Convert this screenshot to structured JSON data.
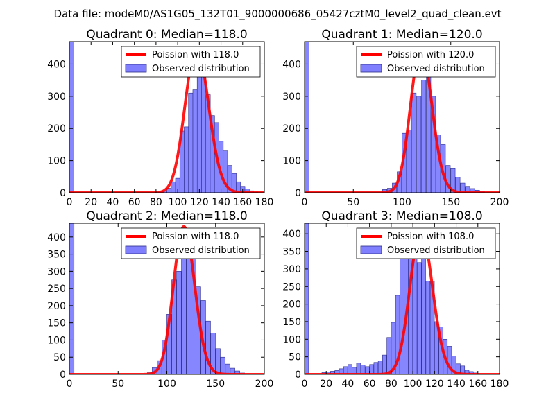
{
  "figure_title": "Data file: modeM0/AS1G05_132T01_9000000686_05427cztM0_level2_quad_clean.evt",
  "colors": {
    "bar_fill": "#8080ff",
    "bar_edge": "#2a2a88",
    "curve": "#ff0000",
    "axes": "#000000",
    "background": "#ffffff"
  },
  "chart_data": [
    {
      "type": "bar",
      "title": "Quadrant 0: Median=118.0",
      "legend_position": "top-right",
      "legend": [
        "Poission with 118.0",
        "Observed distribution"
      ],
      "median": 118.0,
      "xlim": [
        0,
        180
      ],
      "ylim": [
        0,
        470
      ],
      "xticks": [
        0,
        20,
        40,
        60,
        80,
        100,
        120,
        140,
        160,
        180
      ],
      "xtick_labels": [
        "0",
        "20",
        "40",
        "60",
        "80",
        "100",
        "120",
        "140",
        "160",
        "180"
      ],
      "yticks": [
        0,
        100,
        200,
        300,
        400
      ],
      "ytick_labels": [
        "0",
        "100",
        "200",
        "300",
        "400"
      ],
      "bin_width": 4.1,
      "bins": [
        [
          0,
          470
        ],
        [
          82,
          3
        ],
        [
          86,
          6
        ],
        [
          90,
          14
        ],
        [
          94,
          34
        ],
        [
          98,
          45
        ],
        [
          102,
          192
        ],
        [
          106,
          205
        ],
        [
          110,
          310
        ],
        [
          114,
          320
        ],
        [
          118,
          380
        ],
        [
          122,
          370
        ],
        [
          126,
          305
        ],
        [
          130,
          240
        ],
        [
          134,
          218
        ],
        [
          138,
          160
        ],
        [
          142,
          130
        ],
        [
          146,
          85
        ],
        [
          150,
          60
        ],
        [
          154,
          34
        ],
        [
          158,
          20
        ],
        [
          162,
          12
        ],
        [
          166,
          6
        ],
        [
          170,
          2
        ]
      ],
      "curve_scale": 450
    },
    {
      "type": "bar",
      "title": "Quadrant 1: Median=120.0",
      "legend_position": "top-right",
      "legend": [
        "Poission with 120.0",
        "Observed distribution"
      ],
      "median": 120.0,
      "xlim": [
        0,
        200
      ],
      "ylim": [
        0,
        470
      ],
      "xticks": [
        0,
        50,
        100,
        150,
        200
      ],
      "xtick_labels": [
        "0",
        "50",
        "100",
        "150",
        "200"
      ],
      "yticks": [
        0,
        100,
        200,
        300,
        400
      ],
      "ytick_labels": [
        "0",
        "100",
        "200",
        "300",
        "400"
      ],
      "bin_width": 4.5,
      "bins": [
        [
          0,
          470
        ],
        [
          80,
          10
        ],
        [
          85,
          14
        ],
        [
          90,
          30
        ],
        [
          95,
          65
        ],
        [
          100,
          185
        ],
        [
          105,
          195
        ],
        [
          110,
          310
        ],
        [
          115,
          300
        ],
        [
          120,
          350
        ],
        [
          125,
          410
        ],
        [
          130,
          300
        ],
        [
          135,
          180
        ],
        [
          140,
          150
        ],
        [
          145,
          85
        ],
        [
          150,
          75
        ],
        [
          155,
          48
        ],
        [
          160,
          30
        ],
        [
          165,
          20
        ],
        [
          170,
          13
        ],
        [
          175,
          8
        ],
        [
          180,
          5
        ]
      ],
      "curve_scale": 450
    },
    {
      "type": "bar",
      "title": "Quadrant 2: Median=118.0",
      "legend_position": "top-right",
      "legend": [
        "Poission with 118.0",
        "Observed distribution"
      ],
      "median": 118.0,
      "xlim": [
        0,
        200
      ],
      "ylim": [
        0,
        440
      ],
      "xticks": [
        0,
        50,
        100,
        150,
        200
      ],
      "xtick_labels": [
        "0",
        "50",
        "100",
        "150",
        "200"
      ],
      "yticks": [
        0,
        50,
        100,
        150,
        200,
        250,
        300,
        350,
        400
      ],
      "ytick_labels": [
        "0",
        "50",
        "100",
        "150",
        "200",
        "250",
        "300",
        "350",
        "400"
      ],
      "bin_width": 4.8,
      "bins": [
        [
          0,
          440
        ],
        [
          80,
          5
        ],
        [
          85,
          20
        ],
        [
          90,
          40
        ],
        [
          95,
          100
        ],
        [
          100,
          175
        ],
        [
          105,
          275
        ],
        [
          110,
          300
        ],
        [
          115,
          380
        ],
        [
          120,
          410
        ],
        [
          125,
          375
        ],
        [
          130,
          255
        ],
        [
          135,
          215
        ],
        [
          140,
          155
        ],
        [
          145,
          120
        ],
        [
          150,
          75
        ],
        [
          155,
          50
        ],
        [
          160,
          30
        ],
        [
          165,
          18
        ],
        [
          170,
          10
        ],
        [
          175,
          4
        ]
      ],
      "curve_scale": 430
    },
    {
      "type": "bar",
      "title": "Quadrant 3: Median=108.0",
      "legend_position": "top-right",
      "legend": [
        "Poission with 108.0",
        "Observed distribution"
      ],
      "median": 108.0,
      "xlim": [
        0,
        180
      ],
      "ylim": [
        0,
        430
      ],
      "xticks": [
        0,
        20,
        40,
        60,
        80,
        100,
        120,
        140,
        160,
        180
      ],
      "xtick_labels": [
        "0",
        "20",
        "40",
        "60",
        "80",
        "100",
        "120",
        "140",
        "160",
        "180"
      ],
      "yticks": [
        0,
        50,
        100,
        150,
        200,
        250,
        300,
        350,
        400
      ],
      "ytick_labels": [
        "0",
        "50",
        "100",
        "150",
        "200",
        "250",
        "300",
        "350",
        "400"
      ],
      "bin_width": 3.8,
      "bins": [
        [
          0,
          430
        ],
        [
          16,
          5
        ],
        [
          20,
          7
        ],
        [
          24,
          9
        ],
        [
          28,
          11
        ],
        [
          32,
          16
        ],
        [
          36,
          22
        ],
        [
          40,
          28
        ],
        [
          44,
          20
        ],
        [
          48,
          32
        ],
        [
          52,
          27
        ],
        [
          56,
          22
        ],
        [
          60,
          28
        ],
        [
          64,
          34
        ],
        [
          68,
          38
        ],
        [
          72,
          55
        ],
        [
          76,
          105
        ],
        [
          80,
          148
        ],
        [
          84,
          225
        ],
        [
          88,
          335
        ],
        [
          92,
          365
        ],
        [
          96,
          395
        ],
        [
          100,
          410
        ],
        [
          104,
          318
        ],
        [
          108,
          340
        ],
        [
          112,
          265
        ],
        [
          116,
          265
        ],
        [
          120,
          150
        ],
        [
          124,
          135
        ],
        [
          128,
          100
        ],
        [
          132,
          80
        ],
        [
          136,
          52
        ],
        [
          140,
          30
        ],
        [
          144,
          24
        ],
        [
          148,
          12
        ],
        [
          152,
          8
        ],
        [
          156,
          4
        ]
      ],
      "curve_scale": 410
    }
  ]
}
